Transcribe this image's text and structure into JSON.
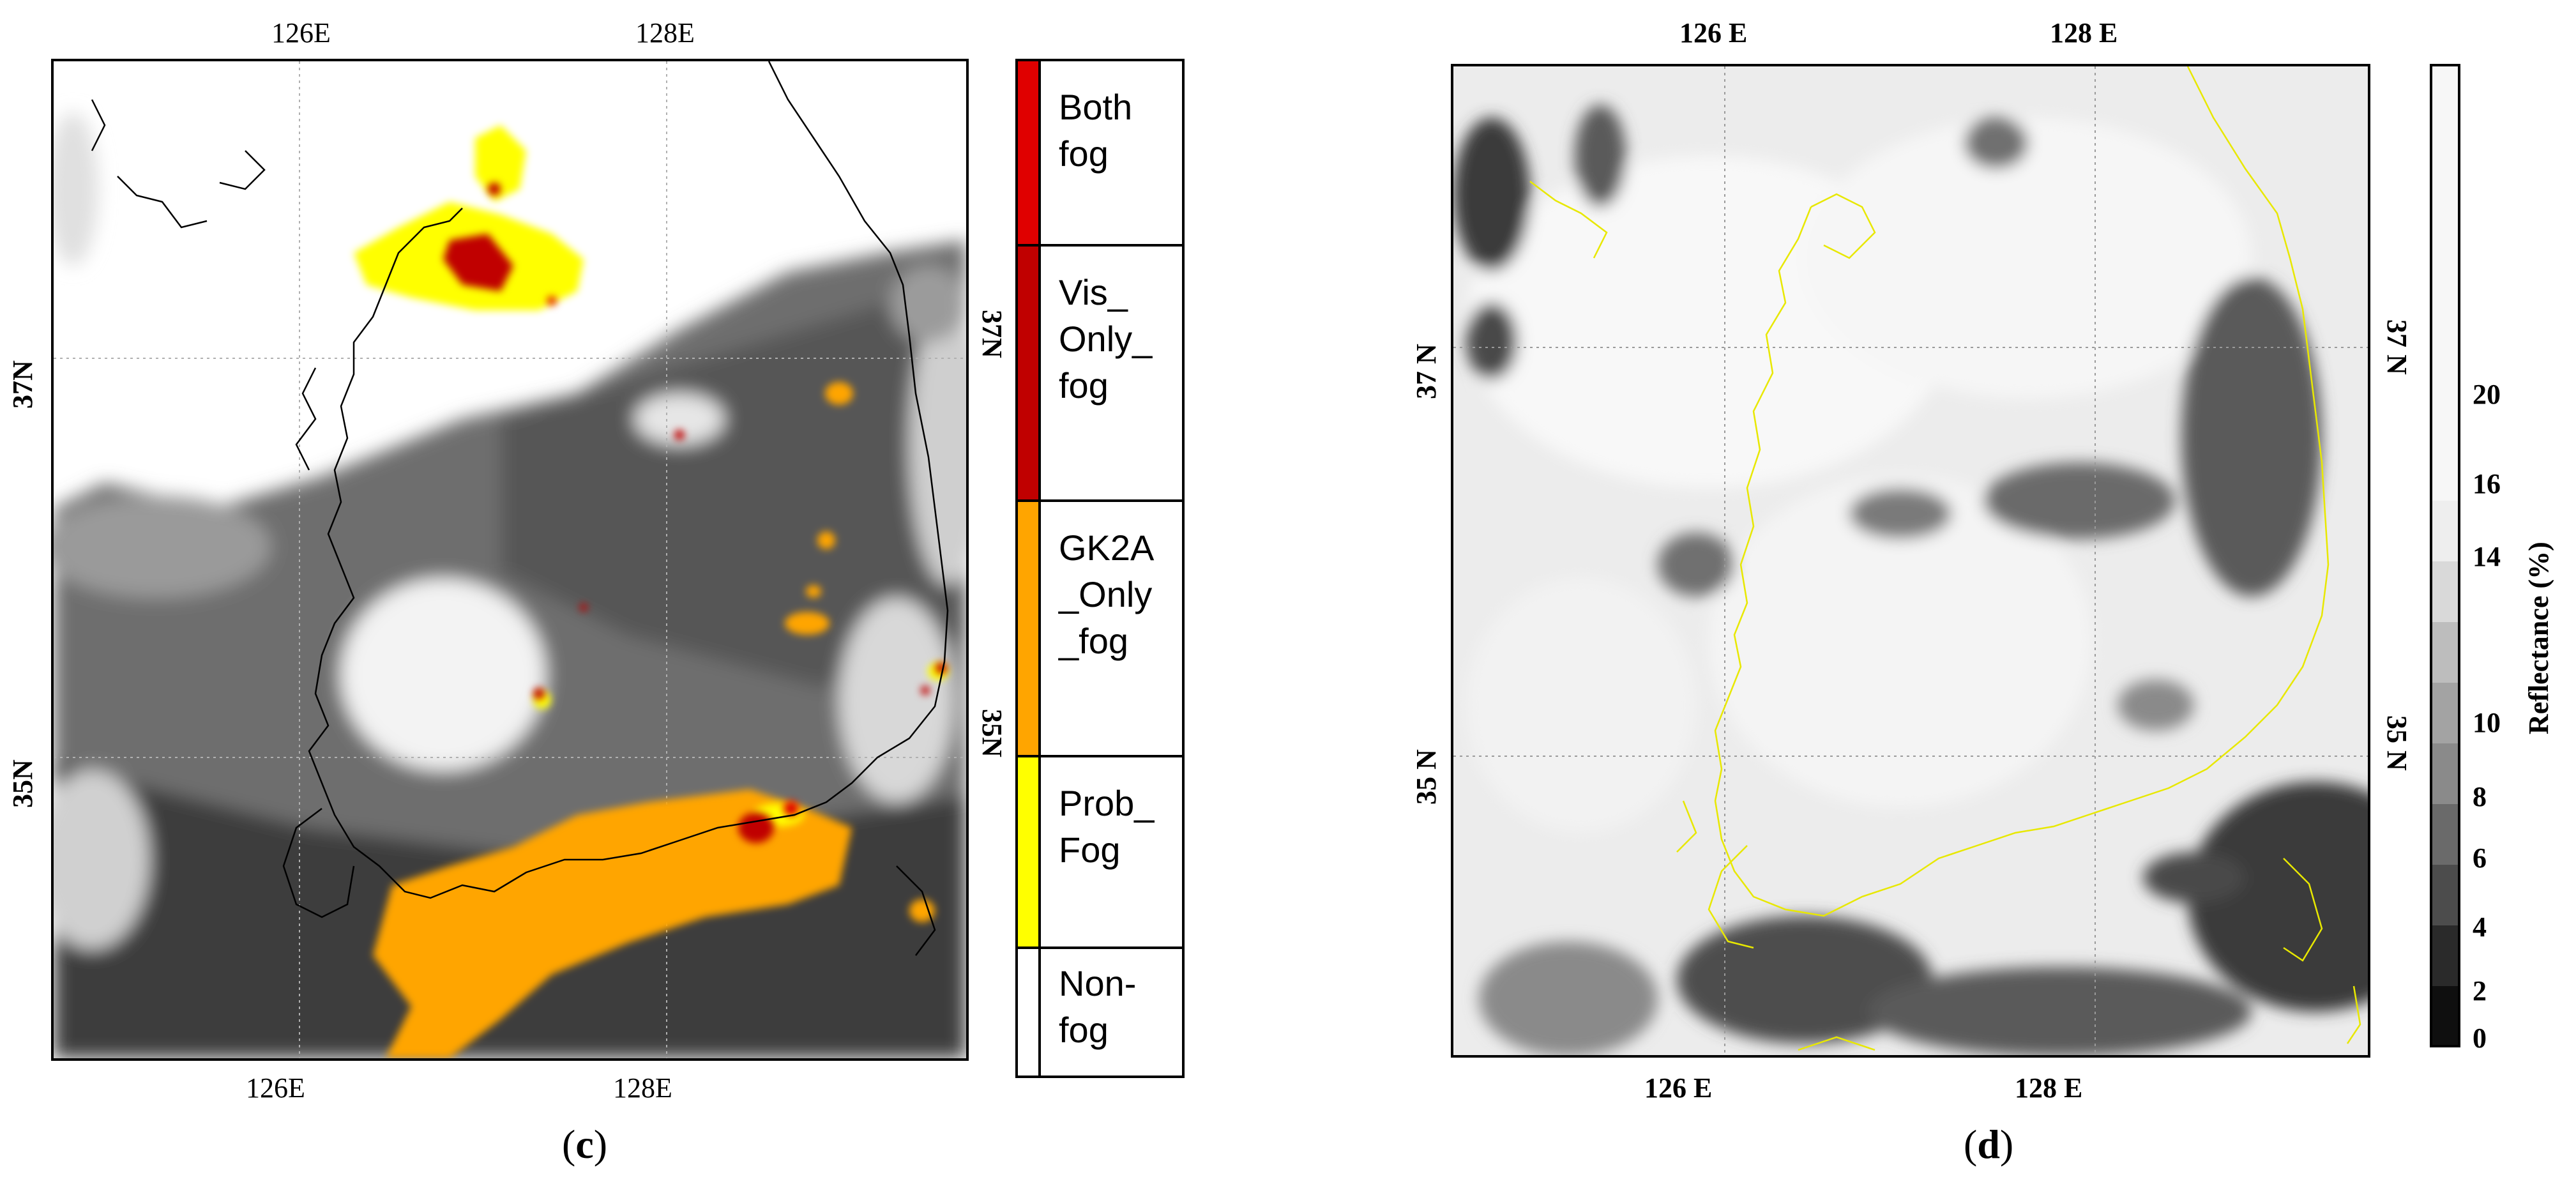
{
  "panel_c": {
    "letter_open": "(",
    "letter": "c",
    "letter_close": ")",
    "top_lon_labels": [
      "126E",
      "128E"
    ],
    "bottom_lon_labels": [
      "126E",
      "128E"
    ],
    "left_lat_labels": [
      "37N",
      "35N"
    ],
    "right_lat_labels": [
      "37N",
      "35N"
    ],
    "legend": [
      {
        "label": "Both\nfog",
        "color": "#e00000"
      },
      {
        "label": "Vis_\nOnly_\nfog",
        "color": "#c00000"
      },
      {
        "label": "GK2A\n_Only\n_fog",
        "color": "#ffa500"
      },
      {
        "label": "Prob_\nFog",
        "color": "#ffff00"
      },
      {
        "label": "Non-\nfog",
        "color": "#ffffff"
      }
    ]
  },
  "panel_d": {
    "letter_open": "(",
    "letter": "d",
    "letter_close": ")",
    "top_lon_labels": [
      "126 E",
      "128 E"
    ],
    "bottom_lon_labels": [
      "126 E",
      "128 E"
    ],
    "left_lat_labels": [
      "37 N",
      "35 N"
    ],
    "right_lat_labels": [
      "37 N",
      "35 N"
    ],
    "colorbar": {
      "title": "Reflectance (%)",
      "tick_labels": [
        "20",
        "16",
        "14",
        "10",
        "8",
        "6",
        "4",
        "2",
        "0"
      ],
      "colors": [
        "#f7f7f7",
        "#eeeeee",
        "#e2e2e2",
        "#c9c9c9",
        "#a8a8a8",
        "#8a8a8a",
        "#6a6a6a",
        "#4a4a4a",
        "#2a2a2a",
        "#0f0f0f"
      ]
    }
  },
  "colors": {
    "both_fog": "#e00000",
    "vis_only_fog": "#c00000",
    "gk2a_only_fog": "#ffa500",
    "prob_fog": "#ffff00",
    "coastline_c": "#000000",
    "coastline_d": "#e8e800"
  }
}
